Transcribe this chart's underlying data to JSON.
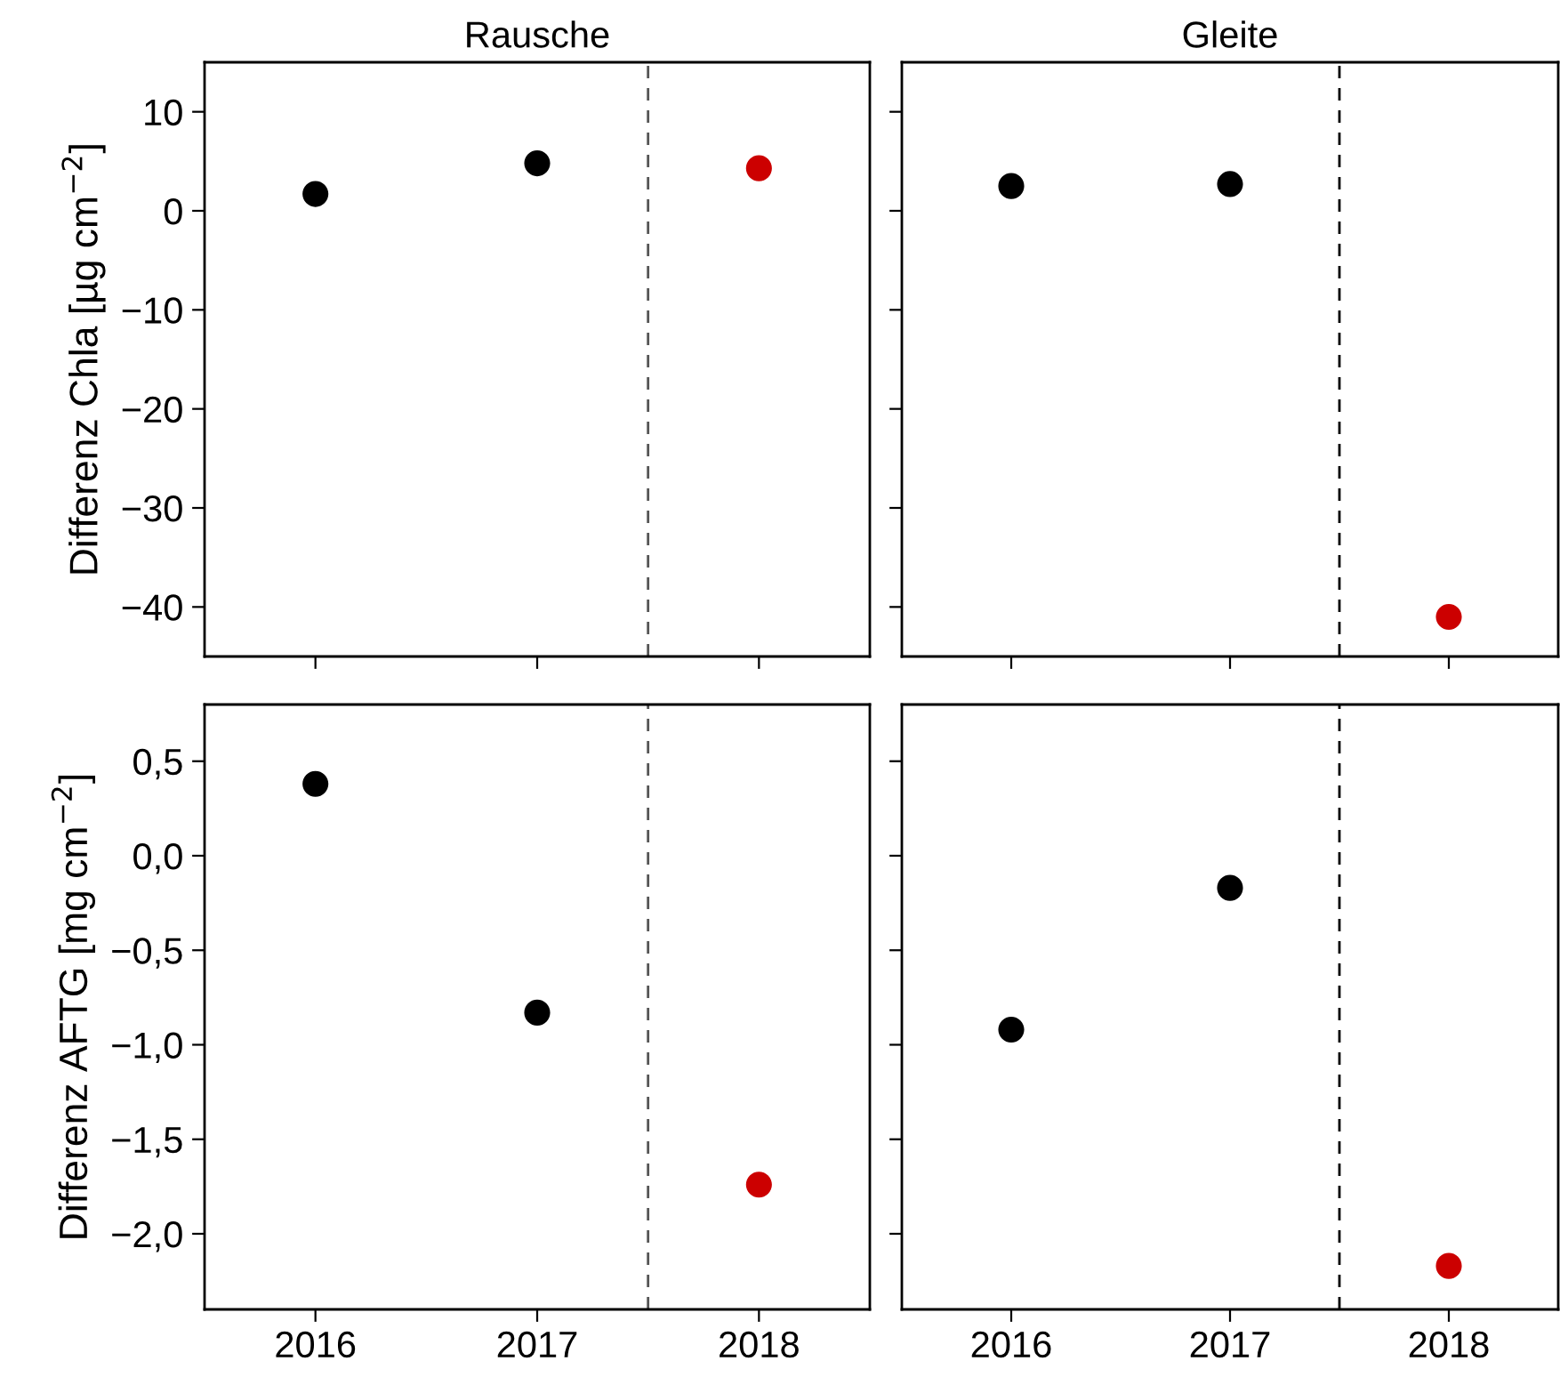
{
  "chart_data": [
    {
      "type": "scatter",
      "title": "Rausche",
      "ylabel": "Differenz Chla [µg cm$^{−2}$]",
      "x": [
        2016,
        2017,
        2018
      ],
      "values": [
        1.7,
        4.8,
        4.3
      ],
      "colors": [
        "#000000",
        "#000000",
        "#cc0000"
      ],
      "marker": "circle",
      "xlim": [
        2015.5,
        2018.5
      ],
      "xticks": [
        {
          "value": 2016,
          "label": null
        },
        {
          "value": 2017,
          "label": null
        },
        {
          "value": 2018,
          "label": null
        }
      ],
      "ylim": [
        -45,
        15
      ],
      "yticks": [
        {
          "value": -40,
          "label": "−40"
        },
        {
          "value": -30,
          "label": "−30"
        },
        {
          "value": -20,
          "label": "−20"
        },
        {
          "value": -10,
          "label": "−10"
        },
        0,
        10
      ],
      "ref_lines": [
        {
          "axis": "x",
          "value": 2017.5,
          "color": "#555555",
          "line_style": "dashed"
        }
      ],
      "tick_labels": "y"
    },
    {
      "type": "scatter",
      "title": "Gleite",
      "x": [
        2016,
        2017,
        2018
      ],
      "values": [
        2.5,
        2.7,
        -41.0
      ],
      "colors": [
        "#000000",
        "#000000",
        "#cc0000"
      ],
      "marker": "circle",
      "xlim": [
        2015.5,
        2018.5
      ],
      "xticks": [
        {
          "value": 2016,
          "label": null
        },
        {
          "value": 2017,
          "label": null
        },
        {
          "value": 2018,
          "label": null
        }
      ],
      "ylim": [
        -45,
        15
      ],
      "yticks": [
        {
          "value": -40,
          "label": null
        },
        {
          "value": -30,
          "label": null
        },
        {
          "value": -20,
          "label": null
        },
        {
          "value": -10,
          "label": null
        },
        {
          "value": 0,
          "label": null
        },
        {
          "value": 10,
          "label": null
        }
      ],
      "ref_lines": [
        {
          "axis": "x",
          "value": 2017.5,
          "color": "#000000",
          "line_style": "dashed"
        }
      ],
      "tick_labels": false
    },
    {
      "type": "scatter",
      "ylabel": "Differenz AFTG [mg cm$^{−2}$]",
      "x": [
        2016,
        2017,
        2018
      ],
      "values": [
        0.38,
        -0.83,
        -1.74
      ],
      "colors": [
        "#000000",
        "#000000",
        "#cc0000"
      ],
      "marker": "circle",
      "xlim": [
        2015.5,
        2018.5
      ],
      "xticks": [
        2016,
        2017,
        2018
      ],
      "ylim": [
        -2.4,
        0.8
      ],
      "yticks": [
        {
          "value": -2.0,
          "label": "−2,0"
        },
        {
          "value": -1.5,
          "label": "−1,5"
        },
        {
          "value": -1.0,
          "label": "−1,0"
        },
        {
          "value": -0.5,
          "label": "−0,5"
        },
        {
          "value": 0.0,
          "label": "0,0"
        },
        {
          "value": 0.5,
          "label": "0,5"
        }
      ],
      "ref_lines": [
        {
          "axis": "x",
          "value": 2017.5,
          "color": "#555555",
          "line_style": "dashed"
        }
      ]
    },
    {
      "type": "scatter",
      "x": [
        2016,
        2017,
        2018
      ],
      "values": [
        -0.92,
        -0.17,
        -2.17
      ],
      "colors": [
        "#000000",
        "#000000",
        "#cc0000"
      ],
      "marker": "circle",
      "xlim": [
        2015.5,
        2018.5
      ],
      "xticks": [
        2016,
        2017,
        2018
      ],
      "ylim": [
        -2.4,
        0.8
      ],
      "yticks": [
        {
          "value": -2.0,
          "label": null
        },
        {
          "value": -1.5,
          "label": null
        },
        {
          "value": -1.0,
          "label": null
        },
        {
          "value": -0.5,
          "label": null
        },
        {
          "value": 0.0,
          "label": null
        },
        {
          "value": 0.5,
          "label": null
        }
      ],
      "ref_lines": [
        {
          "axis": "x",
          "value": 2017.5,
          "color": "#000000",
          "line_style": "dashed"
        }
      ],
      "tick_labels": "x"
    }
  ]
}
